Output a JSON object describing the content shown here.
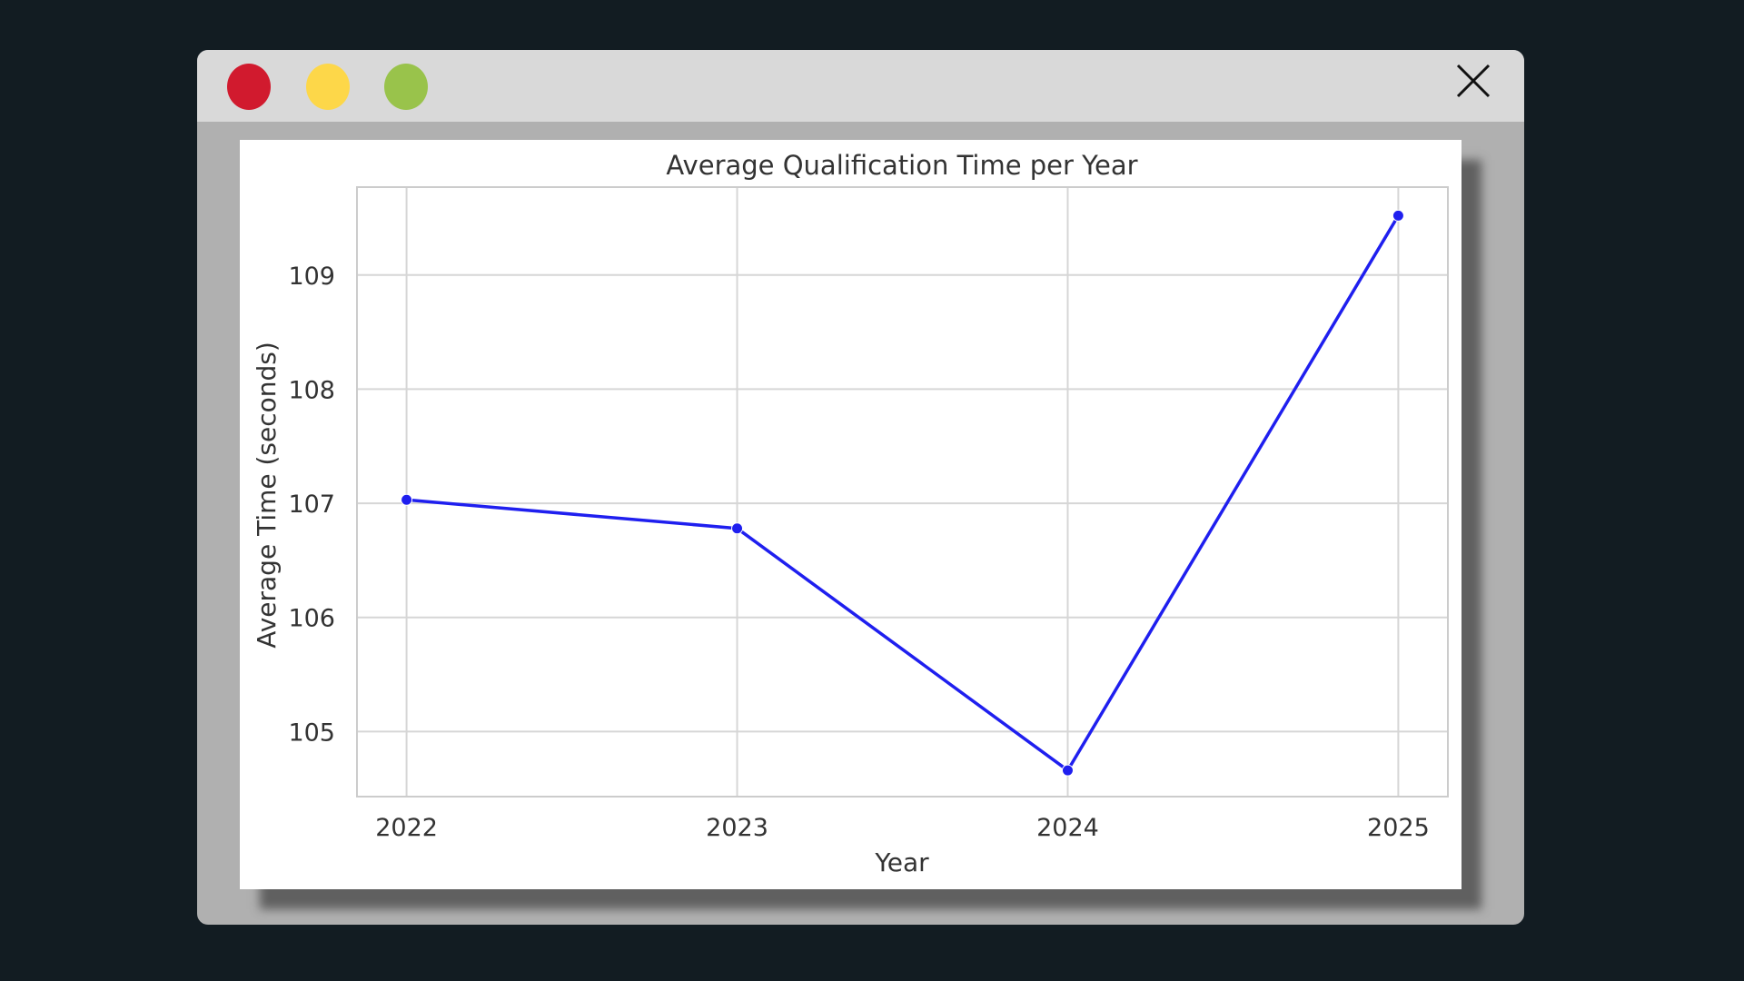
{
  "window": {
    "controls": [
      {
        "name": "close",
        "color": "#d11a2e"
      },
      {
        "name": "minimize",
        "color": "#fdd749"
      },
      {
        "name": "maximize",
        "color": "#99c34b"
      }
    ],
    "close_icon": "close-icon",
    "titlebar_color": "#d9d9d9",
    "frame_color": "#b0b0b0"
  },
  "chart_data": {
    "type": "line",
    "title": "Average Qualification Time per Year",
    "xlabel": "Year",
    "ylabel": "Average Time (seconds)",
    "x": [
      2022,
      2023,
      2024,
      2025
    ],
    "x_tick_labels": [
      "2022",
      "2023",
      "2024",
      "2025"
    ],
    "y_ticks": [
      105,
      106,
      107,
      108,
      109
    ],
    "y_tick_labels": [
      "105",
      "106",
      "107",
      "108",
      "109"
    ],
    "ylim": [
      104.43,
      109.77
    ],
    "xlim": [
      2021.85,
      2025.15
    ],
    "series": [
      {
        "color": "#1f1fef",
        "marker": "circle",
        "values": [
          107.03,
          106.78,
          104.66,
          109.52
        ]
      }
    ],
    "grid": true,
    "legend": "none"
  }
}
